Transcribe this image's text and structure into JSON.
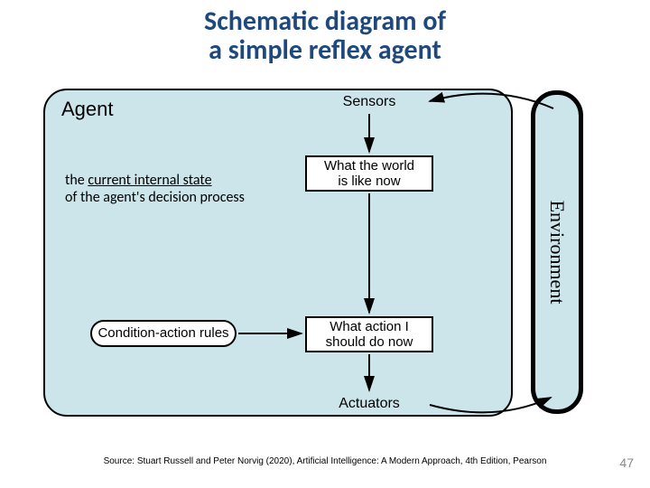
{
  "title_line1": "Schematic diagram of",
  "title_line2": "a simple reflex agent",
  "title_color": "#1f497d",
  "title_fontsize": 30,
  "diagram": {
    "type": "flowchart",
    "agent_label": "Agent",
    "environment_label": "Environment",
    "sensors_label": "Sensors",
    "actuators_label": "Actuators",
    "node_world": "What the world\nis like now",
    "node_action": "What action I\nshould do now",
    "node_rules": "Condition-action rules",
    "annotation_line1_pre": "the ",
    "annotation_line1_underlined": "current internal state",
    "annotation_line2": "of the agent's decision process",
    "bg_color": "#cce5eb",
    "border_color": "#000000",
    "node_fill": "#ffffff",
    "arrow_color": "#000000",
    "agent_box_radius": 26,
    "env_box_radius": 28,
    "env_border_width": 5
  },
  "source": "Source: Stuart Russell and Peter Norvig (2020), Artificial Intelligence: A Modern Approach, 4th Edition, Pearson",
  "page_number": "47"
}
